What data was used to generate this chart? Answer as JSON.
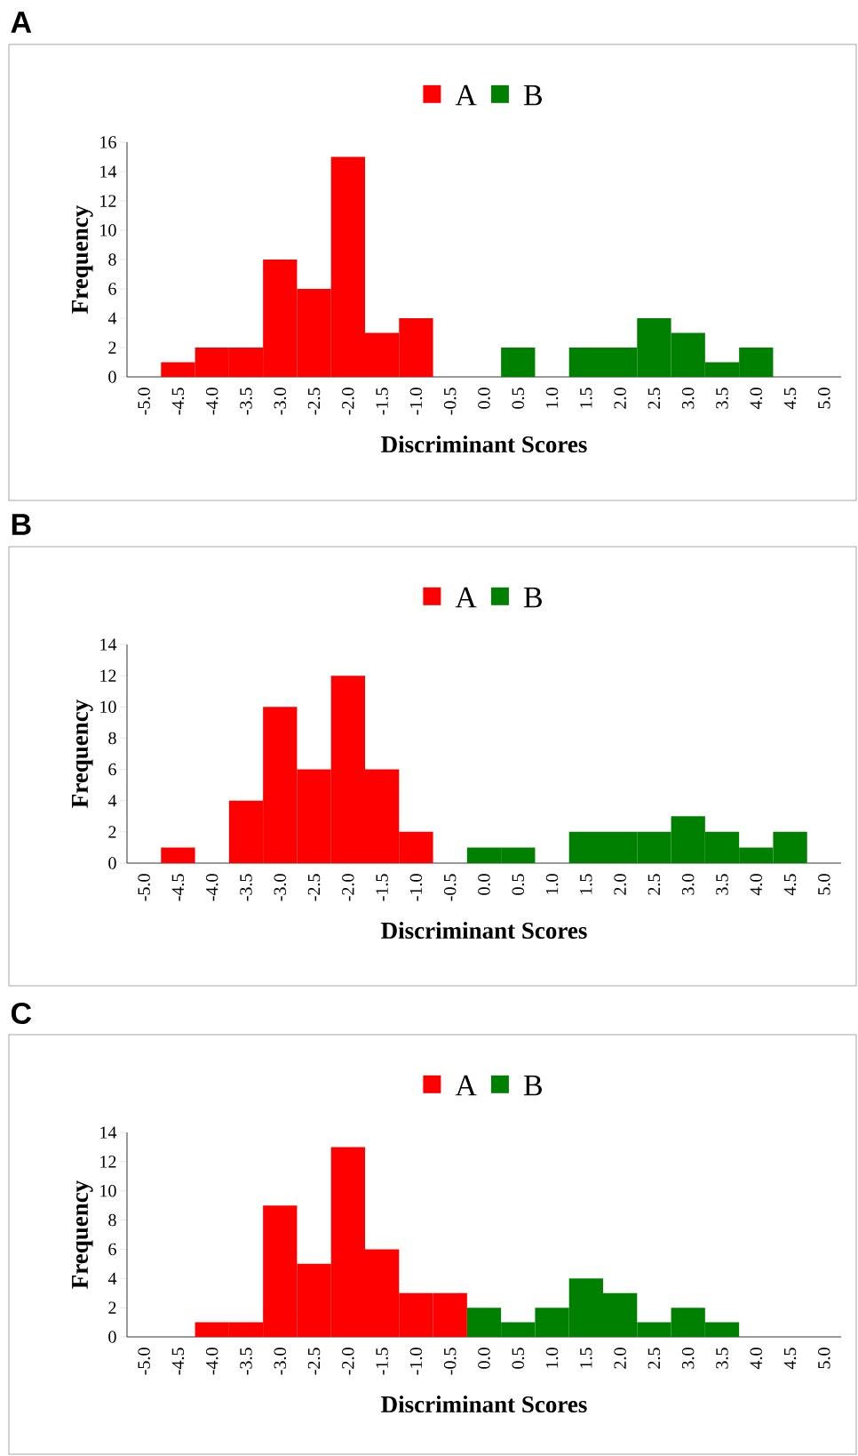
{
  "chart_data": [
    {
      "type": "bar",
      "title": "A",
      "xlabel": "Discriminant Scores",
      "ylabel": "Frequency",
      "legend": "top",
      "categories": [
        "-5.0",
        "-4.5",
        "-4.0",
        "-3.5",
        "-3.0",
        "-2.5",
        "-2.0",
        "-1.5",
        "-1.0",
        "-0.5",
        "0.0",
        "0.5",
        "1.0",
        "1.5",
        "2.0",
        "2.5",
        "3.0",
        "3.5",
        "4.0",
        "4.5",
        "5.0"
      ],
      "series": [
        {
          "name": "A",
          "color": "#ff0000",
          "values": [
            null,
            1,
            2,
            2,
            8,
            6,
            15,
            3,
            4,
            null,
            null,
            null,
            null,
            null,
            null,
            null,
            null,
            null,
            null,
            null,
            null
          ]
        },
        {
          "name": "B",
          "color": "#008000",
          "values": [
            null,
            null,
            null,
            null,
            null,
            null,
            null,
            null,
            null,
            null,
            null,
            2,
            null,
            2,
            2,
            4,
            3,
            1,
            2,
            null,
            null
          ]
        }
      ],
      "ylim": [
        0,
        16
      ],
      "yticks": [
        0,
        2,
        4,
        6,
        8,
        10,
        12,
        14,
        16
      ]
    },
    {
      "type": "bar",
      "title": "B",
      "xlabel": "Discriminant Scores",
      "ylabel": "Frequency",
      "legend": "top",
      "categories": [
        "-5.0",
        "-4.5",
        "-4.0",
        "-3.5",
        "-3.0",
        "-2.5",
        "-2.0",
        "-1.5",
        "-1.0",
        "-0.5",
        "0.0",
        "0.5",
        "1.0",
        "1.5",
        "2.0",
        "2.5",
        "3.0",
        "3.5",
        "4.0",
        "4.5",
        "5.0"
      ],
      "series": [
        {
          "name": "A",
          "color": "#ff0000",
          "values": [
            null,
            1,
            null,
            4,
            10,
            6,
            12,
            6,
            2,
            null,
            null,
            null,
            null,
            null,
            null,
            null,
            null,
            null,
            null,
            null,
            null
          ]
        },
        {
          "name": "B",
          "color": "#008000",
          "values": [
            null,
            null,
            null,
            null,
            null,
            null,
            null,
            null,
            null,
            null,
            1,
            1,
            null,
            2,
            2,
            2,
            3,
            2,
            1,
            2,
            null
          ]
        }
      ],
      "ylim": [
        0,
        14
      ],
      "yticks": [
        0,
        2,
        4,
        6,
        8,
        10,
        12,
        14
      ]
    },
    {
      "type": "bar",
      "title": "C",
      "xlabel": "Discriminant Scores",
      "ylabel": "Frequency",
      "legend": "top",
      "categories": [
        "-5.0",
        "-4.5",
        "-4.0",
        "-3.5",
        "-3.0",
        "-2.5",
        "-2.0",
        "-1.5",
        "-1.0",
        "-0.5",
        "0.0",
        "0.5",
        "1.0",
        "1.5",
        "2.0",
        "2.5",
        "3.0",
        "3.5",
        "4.0",
        "4.5",
        "5.0"
      ],
      "series": [
        {
          "name": "A",
          "color": "#ff0000",
          "values": [
            null,
            null,
            1,
            1,
            9,
            5,
            13,
            6,
            3,
            3,
            null,
            null,
            null,
            null,
            null,
            null,
            null,
            null,
            null,
            null,
            null
          ]
        },
        {
          "name": "B",
          "color": "#008000",
          "values": [
            null,
            null,
            null,
            null,
            null,
            null,
            null,
            null,
            null,
            null,
            2,
            1,
            2,
            4,
            3,
            1,
            2,
            1,
            null,
            null,
            null
          ]
        }
      ],
      "ylim": [
        0,
        14
      ],
      "yticks": [
        0,
        2,
        4,
        6,
        8,
        10,
        12,
        14
      ]
    }
  ]
}
